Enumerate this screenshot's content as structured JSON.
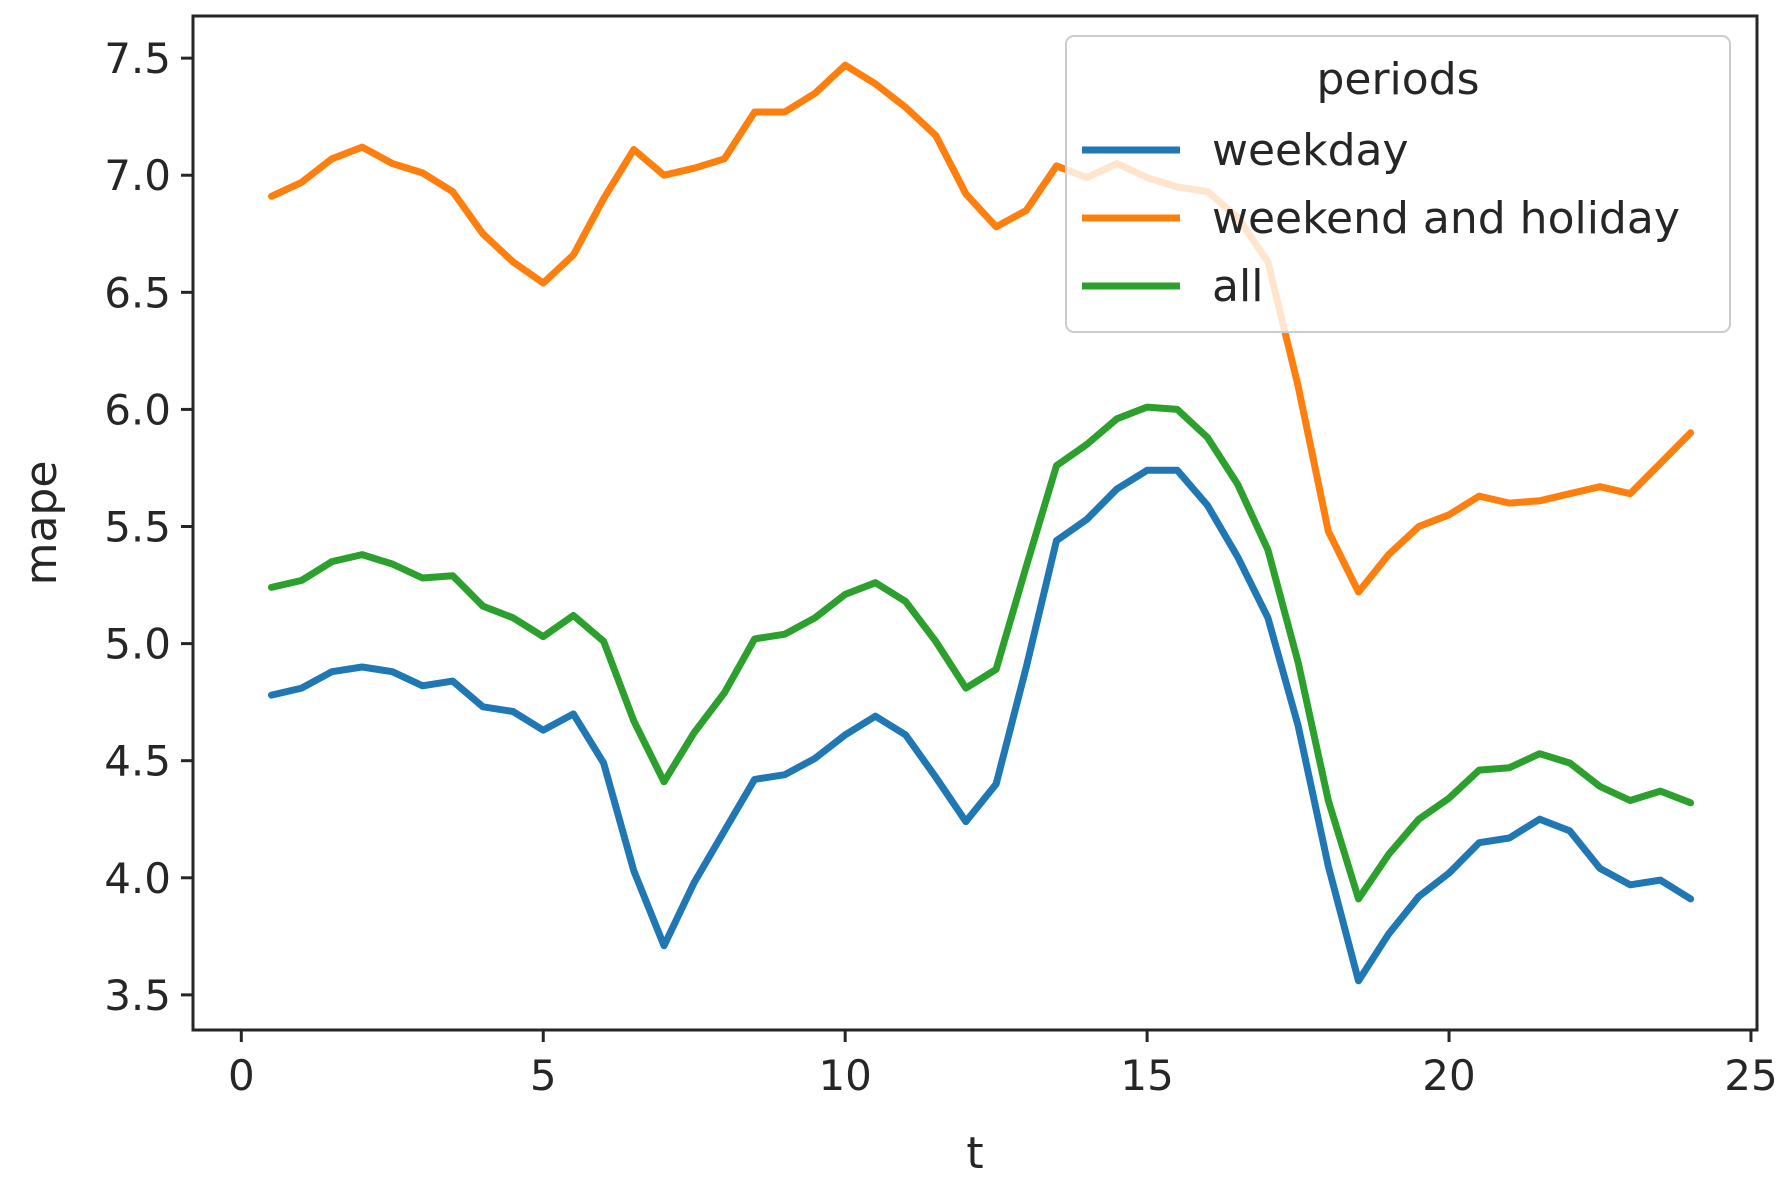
{
  "chart_data": {
    "type": "line",
    "xlabel": "t",
    "ylabel": "mape",
    "xlim": [
      -0.8,
      25.1
    ],
    "ylim": [
      3.35,
      7.68
    ],
    "xticks": [
      "0",
      "5",
      "10",
      "15",
      "20",
      "25"
    ],
    "yticks": [
      "3.5",
      "4.0",
      "4.5",
      "5.0",
      "5.5",
      "6.0",
      "6.5",
      "7.0",
      "7.5"
    ],
    "grid": false,
    "legend": {
      "title": "periods",
      "placement": "top-right"
    },
    "x": [
      0.5,
      1.0,
      1.5,
      2.0,
      2.5,
      3.0,
      3.5,
      4.0,
      4.5,
      5.0,
      5.5,
      6.0,
      6.5,
      7.0,
      7.5,
      8.0,
      8.5,
      9.0,
      9.5,
      10.0,
      10.5,
      11.0,
      11.5,
      12.0,
      12.5,
      13.0,
      13.5,
      14.0,
      14.5,
      15.0,
      15.5,
      16.0,
      16.5,
      17.0,
      17.5,
      18.0,
      18.5,
      19.0,
      19.5,
      20.0,
      20.5,
      21.0,
      21.5,
      22.0,
      22.5,
      23.0,
      23.5,
      24.0
    ],
    "series": [
      {
        "name": "weekday",
        "color": "#1f77b4",
        "values": [
          4.78,
          4.81,
          4.88,
          4.9,
          4.88,
          4.82,
          4.84,
          4.73,
          4.71,
          4.63,
          4.7,
          4.49,
          4.03,
          3.71,
          3.98,
          4.2,
          4.42,
          4.44,
          4.51,
          4.61,
          4.69,
          4.61,
          4.43,
          4.24,
          4.4,
          4.9,
          5.44,
          5.53,
          5.66,
          5.74,
          5.74,
          5.59,
          5.37,
          5.11,
          4.65,
          4.05,
          3.56,
          3.76,
          3.92,
          4.02,
          4.15,
          4.17,
          4.25,
          4.2,
          4.04,
          3.97,
          3.99,
          3.91
        ]
      },
      {
        "name": "weekend and holiday",
        "color": "#ff7f0e",
        "values": [
          6.91,
          6.97,
          7.07,
          7.12,
          7.05,
          7.01,
          6.93,
          6.75,
          6.63,
          6.54,
          6.66,
          6.9,
          7.11,
          7.0,
          7.03,
          7.07,
          7.27,
          7.27,
          7.35,
          7.47,
          7.39,
          7.29,
          7.17,
          6.92,
          6.78,
          6.85,
          7.04,
          6.99,
          7.05,
          6.99,
          6.95,
          6.93,
          6.82,
          6.63,
          6.1,
          5.48,
          5.22,
          5.38,
          5.5,
          5.55,
          5.63,
          5.6,
          5.61,
          5.64,
          5.67,
          5.64,
          5.77,
          5.9
        ]
      },
      {
        "name": "all",
        "color": "#2ca02c",
        "values": [
          5.24,
          5.27,
          5.35,
          5.38,
          5.34,
          5.28,
          5.29,
          5.16,
          5.11,
          5.03,
          5.12,
          5.01,
          4.67,
          4.41,
          4.62,
          4.79,
          5.02,
          5.04,
          5.11,
          5.21,
          5.26,
          5.18,
          5.01,
          4.81,
          4.89,
          5.33,
          5.76,
          5.85,
          5.96,
          6.01,
          6.0,
          5.88,
          5.68,
          5.4,
          4.92,
          4.33,
          3.91,
          4.1,
          4.25,
          4.34,
          4.46,
          4.47,
          4.53,
          4.49,
          4.39,
          4.33,
          4.37,
          4.32
        ]
      }
    ]
  }
}
